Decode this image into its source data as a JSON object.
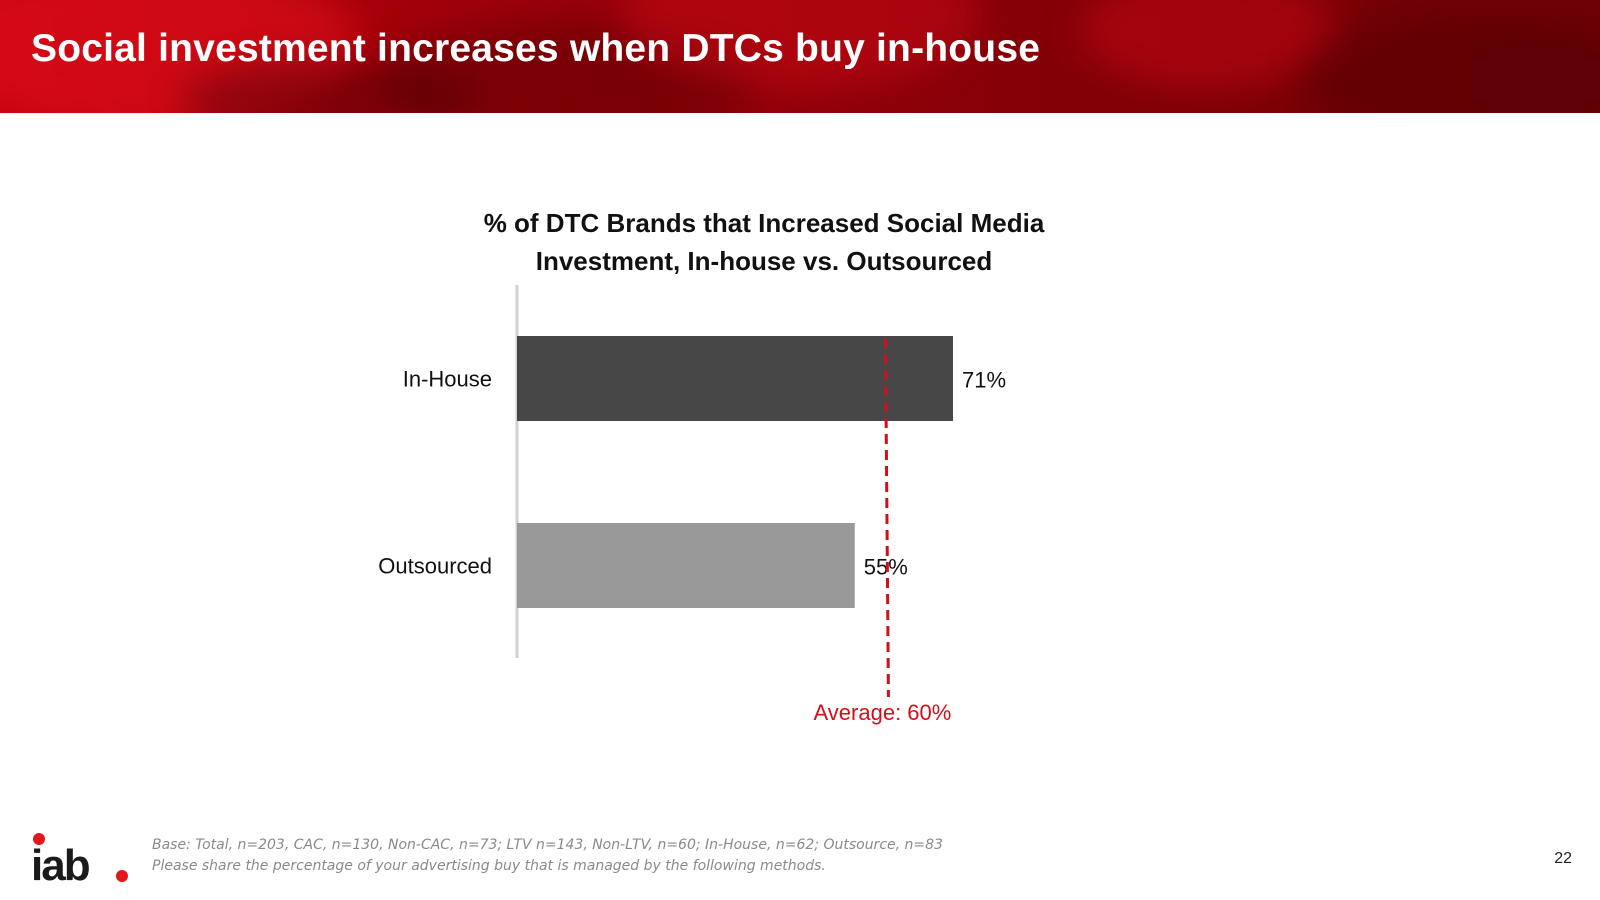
{
  "header": {
    "title": "Social investment increases when DTCs buy in-house"
  },
  "chart_data": {
    "type": "bar",
    "orientation": "horizontal",
    "title": "% of DTC Brands that Increased Social Media Investment, In-house vs. Outsourced",
    "title_lines": [
      "% of DTC Brands that Increased Social Media",
      "Investment, In-house vs. Outsourced"
    ],
    "categories": [
      "In-House",
      "Outsourced"
    ],
    "values": [
      71,
      55
    ],
    "value_labels": [
      "71%",
      "55%"
    ],
    "colors": [
      "#474747",
      "#999999"
    ],
    "xlim": [
      0,
      100
    ],
    "reference_line": {
      "value": 60,
      "label": "Average: 60%",
      "color": "#d0101a"
    }
  },
  "footnote": {
    "base": "Base: Total, n=203, CAC, n=130, Non-CAC, n=73; LTV n=143, Non-LTV, n=60; In-House, n=62; Outsource, n=83",
    "question": "Please share the percentage of your advertising buy that is managed by the following methods."
  },
  "page_number": "22",
  "logo": {
    "text": "iab",
    "dot_color": "#e2171d"
  }
}
